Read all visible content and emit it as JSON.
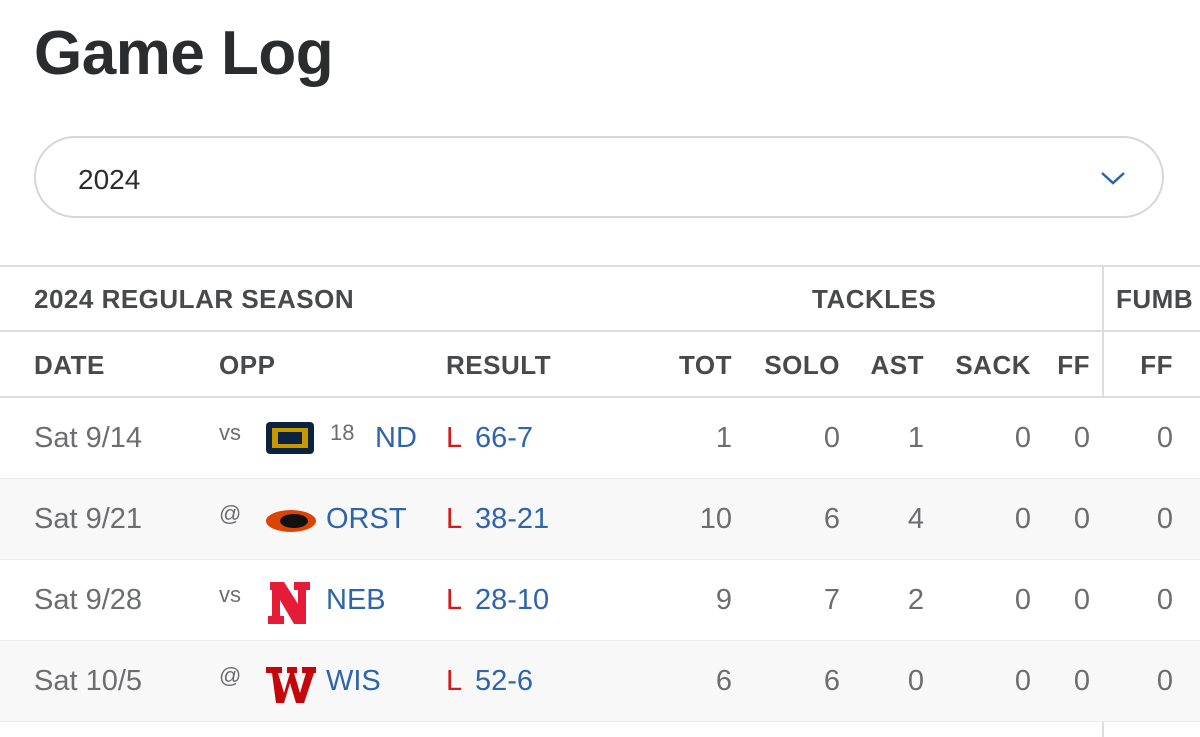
{
  "title": "Game Log",
  "season_select": {
    "value": "2024"
  },
  "table": {
    "group_headers": [
      "2024 REGULAR SEASON",
      "TACKLES",
      "FUMB"
    ],
    "columns": [
      "DATE",
      "OPP",
      "RESULT",
      "TOT",
      "SOLO",
      "AST",
      "SACK",
      "FF",
      "FF"
    ],
    "rows": [
      {
        "date": "Sat 9/14",
        "opp_prefix": "vs",
        "rank": "18",
        "team": "ND",
        "result": "L",
        "score": "66-7",
        "stats": [
          1,
          0,
          1,
          0,
          0,
          0
        ]
      },
      {
        "date": "Sat 9/21",
        "opp_prefix": "@",
        "team": "ORST",
        "result": "L",
        "score": "38-21",
        "stats": [
          10,
          6,
          4,
          0,
          0,
          0
        ]
      },
      {
        "date": "Sat 9/28",
        "opp_prefix": "vs",
        "team": "NEB",
        "result": "L",
        "score": "28-10",
        "stats": [
          9,
          7,
          2,
          0,
          0,
          0
        ]
      },
      {
        "date": "Sat 10/5",
        "opp_prefix": "@",
        "team": "WIS",
        "result": "L",
        "score": "52-6",
        "stats": [
          6,
          6,
          0,
          0,
          0,
          0
        ]
      }
    ]
  }
}
